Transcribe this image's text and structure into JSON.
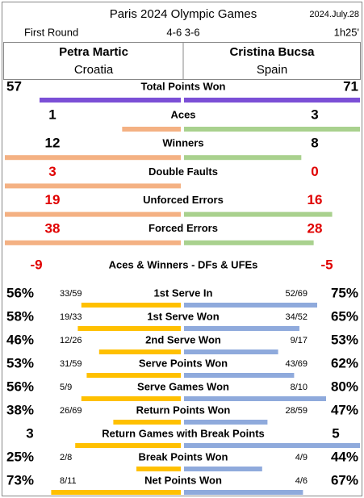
{
  "header": {
    "title": "Paris 2024 Olympic Games",
    "date": "2024.July.28",
    "round": "First Round",
    "score": "4-6 3-6",
    "duration": "1h25'"
  },
  "players": [
    {
      "name": "Petra Martic",
      "country": "Croatia"
    },
    {
      "name": "Cristina Bucsa",
      "country": "Spain"
    }
  ],
  "totals": {
    "label": "Total Points Won",
    "left": 57,
    "right": 71,
    "color": "#7b4fd6"
  },
  "counts": {
    "left_color": "#f4b183",
    "right_color": "#a9d18e",
    "alert_color": "#e00000",
    "rows": [
      {
        "label": "Aces",
        "left": 1,
        "right": 3
      },
      {
        "label": "Winners",
        "left": 12,
        "right": 8
      },
      {
        "label": "Double Faults",
        "left": 3,
        "right": 0,
        "alert": true
      },
      {
        "label": "Unforced Errors",
        "left": 19,
        "right": 16,
        "alert": true
      },
      {
        "label": "Forced Errors",
        "left": 38,
        "right": 28,
        "alert": true
      }
    ]
  },
  "summary": {
    "label": "Aces & Winners - DFs & UFEs",
    "left": -9,
    "right": -5,
    "alert": true
  },
  "rates": {
    "left_color": "#ffc000",
    "right_color": "#8faadc",
    "rows": [
      {
        "label": "1st Serve In",
        "left": 56,
        "left_label": "56%",
        "left_detail": "33/59",
        "right": 75,
        "right_label": "75%",
        "right_detail": "52/69"
      },
      {
        "label": "1st Serve Won",
        "left": 58,
        "left_label": "58%",
        "left_detail": "19/33",
        "right": 65,
        "right_label": "65%",
        "right_detail": "34/52"
      },
      {
        "label": "2nd Serve Won",
        "left": 46,
        "left_label": "46%",
        "left_detail": "12/26",
        "right": 53,
        "right_label": "53%",
        "right_detail": "9/17"
      },
      {
        "label": "Serve Points Won",
        "left": 53,
        "left_label": "53%",
        "left_detail": "31/59",
        "right": 62,
        "right_label": "62%",
        "right_detail": "43/69"
      },
      {
        "label": "Serve Games Won",
        "left": 56,
        "left_label": "56%",
        "left_detail": "5/9",
        "right": 80,
        "right_label": "80%",
        "right_detail": "8/10"
      },
      {
        "label": "Return Points Won",
        "left": 38,
        "left_label": "38%",
        "left_detail": "26/69",
        "right": 47,
        "right_label": "47%",
        "right_detail": "28/59"
      },
      {
        "label": "Return Games with Break Points",
        "left": 3,
        "right": 5
      },
      {
        "label": "Break Points Won",
        "left": 25,
        "left_label": "25%",
        "left_detail": "2/8",
        "right": 44,
        "right_label": "44%",
        "right_detail": "4/9"
      },
      {
        "label": "Net Points Won",
        "left": 73,
        "left_label": "73%",
        "left_detail": "8/11",
        "right": 67,
        "right_label": "67%",
        "right_detail": "4/6"
      }
    ]
  }
}
